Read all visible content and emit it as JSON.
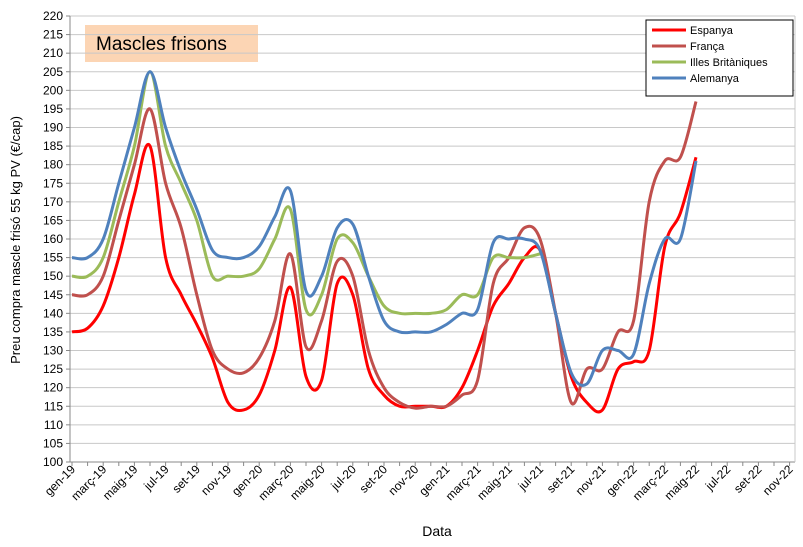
{
  "chart_data": {
    "type": "line",
    "title": "Mascles frisons",
    "x_label": "Data",
    "y_label": "Preu compra mascle frisó 55 kg PV (€/cap)",
    "categories": [
      "gen-19",
      null,
      "març-19",
      null,
      "maig-19",
      null,
      "jul-19",
      null,
      "set-19",
      null,
      "nov-19",
      null,
      "gen-20",
      null,
      "març-20",
      null,
      "maig-20",
      null,
      "jul-20",
      null,
      "set-20",
      null,
      "nov-20",
      null,
      "gen-21",
      null,
      "març-21",
      null,
      "maig-21",
      null,
      "jul-21",
      null,
      "set-21",
      null,
      "nov-21",
      null,
      "gen-22",
      null,
      "març-22",
      null,
      "maig-22",
      null,
      "jul-22",
      null,
      "set-22",
      null,
      "nov-22"
    ],
    "series": [
      {
        "name": "Espanya",
        "color": "#ff0000",
        "values": [
          135,
          136,
          142,
          155,
          172,
          185,
          155,
          145,
          137,
          128,
          116,
          114,
          118,
          130,
          147,
          123,
          122,
          148,
          145,
          125,
          118,
          115,
          115,
          115,
          115,
          120,
          130,
          142,
          148,
          155,
          157,
          140,
          123,
          116,
          114,
          125,
          127,
          130,
          158,
          167,
          182,
          null,
          null,
          null,
          null,
          null,
          null
        ]
      },
      {
        "name": "França",
        "color": "#c0504d",
        "values": [
          145,
          145,
          150,
          165,
          180,
          195,
          175,
          163,
          145,
          130,
          125,
          124,
          128,
          138,
          156,
          131,
          138,
          154,
          150,
          130,
          120,
          116,
          114.5,
          115,
          115,
          118,
          122,
          148,
          155,
          163,
          160,
          140,
          116,
          125,
          125,
          135,
          138,
          170,
          181,
          182,
          197,
          null,
          null,
          null,
          null,
          null,
          null
        ]
      },
      {
        "name": "Illes Britàniques",
        "color": "#9bbb59",
        "values": [
          150,
          150,
          155,
          170,
          185,
          205,
          185,
          175,
          165,
          150,
          150,
          150,
          152,
          160,
          168,
          141,
          145,
          160,
          159,
          150,
          142,
          140,
          140,
          140,
          141,
          145,
          145,
          155,
          155,
          155,
          156,
          null,
          null,
          null,
          null,
          null,
          null,
          null,
          null,
          null,
          null,
          null,
          null,
          null,
          null,
          null,
          null
        ]
      },
      {
        "name": "Alemanya",
        "color": "#4f81bd",
        "values": [
          155,
          155,
          160,
          175,
          190,
          205,
          190,
          178,
          168,
          157,
          155,
          155,
          158,
          166,
          173,
          146,
          150,
          163,
          164,
          150,
          138,
          135,
          135,
          135,
          137,
          140,
          141,
          159,
          160,
          160,
          157,
          140,
          124,
          121,
          130,
          130,
          129,
          148,
          160,
          160,
          181,
          null,
          null,
          null,
          null,
          null,
          null
        ]
      }
    ],
    "ylim": [
      100,
      220
    ],
    "yticks": [
      100,
      105,
      110,
      115,
      120,
      125,
      130,
      135,
      140,
      145,
      150,
      155,
      160,
      165,
      170,
      175,
      180,
      185,
      190,
      195,
      200,
      205,
      210,
      215,
      220
    ],
    "grid": true,
    "legend": "top-right"
  }
}
